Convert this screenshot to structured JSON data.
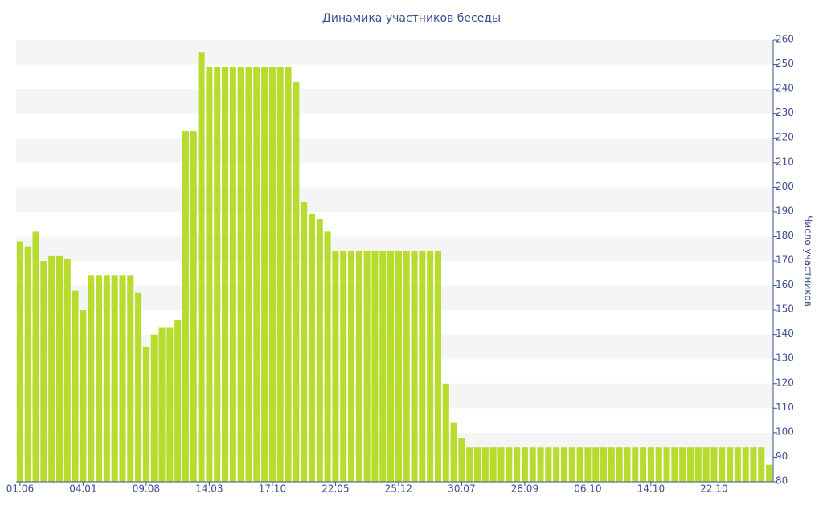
{
  "chart_data": {
    "type": "bar",
    "title": "Динамика участников беседы",
    "y_label": "Число участников",
    "categories": [
      "01.06",
      null,
      null,
      null,
      null,
      null,
      null,
      null,
      "04.01",
      null,
      null,
      null,
      null,
      null,
      null,
      null,
      "09.08",
      null,
      null,
      null,
      null,
      null,
      null,
      null,
      "14.03",
      null,
      null,
      null,
      null,
      null,
      null,
      null,
      "17.10",
      null,
      null,
      null,
      null,
      null,
      null,
      null,
      "22.05",
      null,
      null,
      null,
      null,
      null,
      null,
      null,
      "25.12",
      null,
      null,
      null,
      null,
      null,
      null,
      null,
      "30.07",
      null,
      null,
      null,
      null,
      null,
      null,
      null,
      "28.09",
      null,
      null,
      null,
      null,
      null,
      null,
      null,
      "06.10",
      null,
      null,
      null,
      null,
      null,
      null,
      null,
      "14.10",
      null,
      null,
      null,
      null,
      null,
      null,
      null,
      "22.10",
      null,
      null,
      null,
      null,
      null,
      null,
      null
    ],
    "values": [
      178,
      176,
      182,
      170,
      172,
      172,
      171,
      158,
      150,
      164,
      164,
      164,
      164,
      164,
      164,
      157,
      135,
      140,
      143,
      143,
      146,
      223,
      223,
      255,
      249,
      249,
      249,
      249,
      249,
      249,
      249,
      249,
      249,
      249,
      249,
      243,
      194,
      189,
      187,
      182,
      174,
      174,
      174,
      174,
      174,
      174,
      174,
      174,
      174,
      174,
      174,
      174,
      174,
      174,
      120,
      104,
      98,
      94,
      94,
      94,
      94,
      94,
      94,
      94,
      94,
      94,
      94,
      94,
      94,
      94,
      94,
      94,
      94,
      94,
      94,
      94,
      94,
      94,
      94,
      94,
      94,
      94,
      94,
      94,
      94,
      94,
      94,
      94,
      94,
      94,
      94,
      94,
      94,
      94,
      94,
      87
    ],
    "color": "#b8dc2e",
    "ylim": [
      80,
      260
    ],
    "yticks": [
      80,
      90,
      100,
      110,
      120,
      130,
      140,
      150,
      160,
      170,
      180,
      190,
      200,
      210,
      220,
      230,
      240,
      250,
      260
    ],
    "grid": "bands",
    "y_axis_side": "right"
  }
}
